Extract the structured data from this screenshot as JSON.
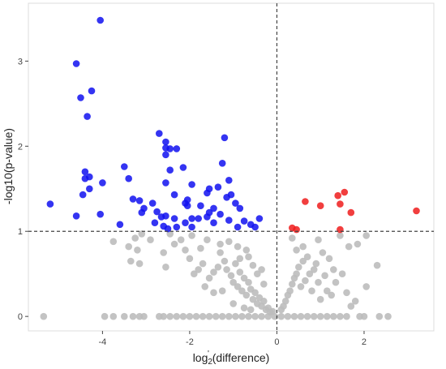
{
  "chart_data": {
    "type": "scatter",
    "title": "",
    "xlabel": "log2 (difference)",
    "xlabel_base": "log",
    "xlabel_sub": "2",
    "xlabel_sup": "'",
    "xlabel_rest": " (difference)",
    "ylabel": "-log10(p-value)",
    "xlim": [
      -5.7,
      3.6
    ],
    "ylim": [
      -0.17,
      3.68
    ],
    "xticks": [
      -4,
      -2,
      0,
      2
    ],
    "yticks": [
      0,
      1,
      2,
      3
    ],
    "xtick_labels": [
      "-4",
      "-2",
      "0",
      "2"
    ],
    "ytick_labels": [
      "0",
      "1",
      "2",
      "3"
    ],
    "grid": false,
    "reference_lines": {
      "x": 0,
      "y": 1,
      "style": "dashed"
    },
    "colors": {
      "down": "#1010f0",
      "up": "#ee1c1c",
      "ns": "#bdbdbd",
      "ref_line": "#444444",
      "frame": "#dcdcdc"
    },
    "series": [
      {
        "color_key": "down",
        "points": [
          [
            -4.05,
            3.48
          ],
          [
            -4.6,
            2.97
          ],
          [
            -4.5,
            2.57
          ],
          [
            -4.25,
            2.65
          ],
          [
            -4.35,
            2.35
          ],
          [
            -5.2,
            1.32
          ],
          [
            -4.6,
            1.18
          ],
          [
            -4.4,
            1.7
          ],
          [
            -4.3,
            1.64
          ],
          [
            -4.4,
            1.62
          ],
          [
            -4.3,
            1.5
          ],
          [
            -4.45,
            1.43
          ],
          [
            -4.0,
            1.57
          ],
          [
            -4.05,
            1.2
          ],
          [
            -3.6,
            1.08
          ],
          [
            -3.5,
            1.76
          ],
          [
            -3.4,
            1.62
          ],
          [
            -3.3,
            1.38
          ],
          [
            -3.15,
            1.36
          ],
          [
            -3.05,
            1.27
          ],
          [
            -3.1,
            1.22
          ],
          [
            -2.85,
            1.33
          ],
          [
            -2.75,
            1.23
          ],
          [
            -2.65,
            1.17
          ],
          [
            -2.55,
            1.18
          ],
          [
            -2.35,
            1.15
          ],
          [
            -2.8,
            1.1
          ],
          [
            -2.6,
            1.06
          ],
          [
            -2.5,
            1.03
          ],
          [
            -2.7,
            2.15
          ],
          [
            -2.55,
            2.05
          ],
          [
            -2.45,
            1.97
          ],
          [
            -2.55,
            1.98
          ],
          [
            -2.3,
            1.97
          ],
          [
            -2.55,
            1.9
          ],
          [
            -2.45,
            1.72
          ],
          [
            -2.55,
            1.57
          ],
          [
            -2.35,
            1.43
          ],
          [
            -2.15,
            1.75
          ],
          [
            -2.05,
            1.37
          ],
          [
            -2.1,
            1.33
          ],
          [
            -2.05,
            1.3
          ],
          [
            -1.95,
            1.55
          ],
          [
            -1.95,
            1.15
          ],
          [
            -1.75,
            1.3
          ],
          [
            -1.55,
            1.22
          ],
          [
            -1.45,
            1.1
          ],
          [
            -1.6,
            1.17
          ],
          [
            -1.8,
            1.15
          ],
          [
            -2.3,
            1.05
          ],
          [
            -2.1,
            1.1
          ],
          [
            -1.95,
            1.05
          ],
          [
            -1.6,
            1.45
          ],
          [
            -1.45,
            1.27
          ],
          [
            -1.2,
            2.1
          ],
          [
            -1.25,
            1.8
          ],
          [
            -1.1,
            1.6
          ],
          [
            -1.05,
            1.43
          ],
          [
            -1.15,
            1.4
          ],
          [
            -0.95,
            1.33
          ],
          [
            -0.85,
            1.27
          ],
          [
            -1.3,
            1.2
          ],
          [
            -1.1,
            1.13
          ],
          [
            -0.9,
            1.05
          ],
          [
            -0.75,
            1.12
          ],
          [
            -0.6,
            1.08
          ],
          [
            -0.4,
            1.15
          ],
          [
            -0.5,
            1.05
          ],
          [
            -1.35,
            1.52
          ],
          [
            -1.55,
            1.5
          ]
        ]
      },
      {
        "color_key": "up",
        "points": [
          [
            0.35,
            1.04
          ],
          [
            0.45,
            1.02
          ],
          [
            0.65,
            1.35
          ],
          [
            1.0,
            1.3
          ],
          [
            1.4,
            1.42
          ],
          [
            1.55,
            1.46
          ],
          [
            1.45,
            1.32
          ],
          [
            1.7,
            1.22
          ],
          [
            1.45,
            1.02
          ],
          [
            3.2,
            1.24
          ]
        ]
      },
      {
        "color_key": "ns",
        "points": [
          [
            -5.35,
            0
          ],
          [
            -3.95,
            0
          ],
          [
            -3.75,
            0
          ],
          [
            -3.5,
            0
          ],
          [
            -3.3,
            0
          ],
          [
            -3.15,
            0
          ],
          [
            -3.05,
            0
          ],
          [
            -2.7,
            0
          ],
          [
            -2.6,
            0
          ],
          [
            -2.45,
            0
          ],
          [
            -2.3,
            0
          ],
          [
            -2.15,
            0
          ],
          [
            -2.0,
            0
          ],
          [
            -1.85,
            0
          ],
          [
            -1.7,
            0
          ],
          [
            -1.55,
            0
          ],
          [
            -1.4,
            0
          ],
          [
            -1.25,
            0
          ],
          [
            -1.1,
            0
          ],
          [
            -0.95,
            0
          ],
          [
            -0.8,
            0
          ],
          [
            -0.65,
            0
          ],
          [
            -0.5,
            0
          ],
          [
            -0.35,
            0
          ],
          [
            -0.2,
            0
          ],
          [
            -0.05,
            0
          ],
          [
            0.1,
            0
          ],
          [
            0.25,
            0
          ],
          [
            0.4,
            0
          ],
          [
            0.55,
            0
          ],
          [
            0.7,
            0
          ],
          [
            0.85,
            0
          ],
          [
            1.0,
            0
          ],
          [
            1.15,
            0
          ],
          [
            1.3,
            0
          ],
          [
            1.45,
            0
          ],
          [
            1.6,
            0
          ],
          [
            1.9,
            0
          ],
          [
            2.0,
            0
          ],
          [
            2.35,
            0
          ],
          [
            2.55,
            0
          ],
          [
            -3.75,
            0.88
          ],
          [
            -3.4,
            0.82
          ],
          [
            -3.2,
            0.78
          ],
          [
            -3.35,
            0.65
          ],
          [
            -3.15,
            0.62
          ],
          [
            -3.25,
            0.92
          ],
          [
            -3.1,
            0.97
          ],
          [
            -2.9,
            0.9
          ],
          [
            -2.6,
            0.75
          ],
          [
            -2.55,
            0.58
          ],
          [
            -2.35,
            0.85
          ],
          [
            -2.1,
            0.78
          ],
          [
            -2.0,
            0.68
          ],
          [
            -1.9,
            0.5
          ],
          [
            -1.8,
            0.55
          ],
          [
            -1.7,
            0.62
          ],
          [
            -1.6,
            0.9
          ],
          [
            -1.55,
            0.45
          ],
          [
            -1.45,
            0.52
          ],
          [
            -1.35,
            0.58
          ],
          [
            -1.3,
            0.75
          ],
          [
            -1.2,
            0.65
          ],
          [
            -1.15,
            0.55
          ],
          [
            -1.05,
            0.48
          ],
          [
            -1.0,
            0.4
          ],
          [
            -0.95,
            0.62
          ],
          [
            -0.9,
            0.35
          ],
          [
            -0.85,
            0.52
          ],
          [
            -0.8,
            0.3
          ],
          [
            -0.75,
            0.45
          ],
          [
            -0.7,
            0.25
          ],
          [
            -0.65,
            0.4
          ],
          [
            -0.6,
            0.32
          ],
          [
            -0.55,
            0.2
          ],
          [
            -0.5,
            0.28
          ],
          [
            -0.45,
            0.15
          ],
          [
            -0.4,
            0.22
          ],
          [
            -0.35,
            0.12
          ],
          [
            -0.3,
            0.18
          ],
          [
            -0.25,
            0.08
          ],
          [
            -0.2,
            0.1
          ],
          [
            -0.15,
            0.05
          ],
          [
            -0.1,
            0.06
          ],
          [
            -1.3,
            0.85
          ],
          [
            -1.1,
            0.88
          ],
          [
            -0.9,
            0.82
          ],
          [
            -0.7,
            0.78
          ],
          [
            -0.55,
            0.6
          ],
          [
            -0.65,
            0.7
          ],
          [
            -0.85,
            0.68
          ],
          [
            -1.25,
            0.3
          ],
          [
            -1.45,
            0.28
          ],
          [
            -1.65,
            0.35
          ],
          [
            -0.75,
            0.1
          ],
          [
            -0.6,
            0.08
          ],
          [
            -1.0,
            0.15
          ],
          [
            -2.2,
            0.9
          ],
          [
            -1.95,
            0.95
          ],
          [
            -2.45,
            0.97
          ],
          [
            -1.75,
            0.8
          ],
          [
            -0.3,
            0.38
          ],
          [
            -0.45,
            0.5
          ],
          [
            -0.35,
            0.55
          ],
          [
            0.1,
            0.08
          ],
          [
            0.15,
            0.12
          ],
          [
            0.2,
            0.18
          ],
          [
            0.25,
            0.25
          ],
          [
            0.3,
            0.3
          ],
          [
            0.35,
            0.38
          ],
          [
            0.4,
            0.45
          ],
          [
            0.45,
            0.5
          ],
          [
            0.5,
            0.58
          ],
          [
            0.55,
            0.35
          ],
          [
            0.6,
            0.65
          ],
          [
            0.65,
            0.42
          ],
          [
            0.7,
            0.7
          ],
          [
            0.75,
            0.5
          ],
          [
            0.8,
            0.3
          ],
          [
            0.85,
            0.55
          ],
          [
            0.9,
            0.62
          ],
          [
            0.95,
            0.4
          ],
          [
            1.0,
            0.2
          ],
          [
            1.05,
            0.75
          ],
          [
            1.1,
            0.48
          ],
          [
            1.15,
            0.3
          ],
          [
            1.2,
            0.68
          ],
          [
            1.25,
            0.25
          ],
          [
            1.3,
            0.55
          ],
          [
            1.35,
            0.4
          ],
          [
            1.5,
            0.5
          ],
          [
            1.6,
            0.28
          ],
          [
            1.7,
            0.12
          ],
          [
            1.8,
            0.18
          ],
          [
            1.85,
            0.85
          ],
          [
            1.65,
            0.82
          ],
          [
            2.05,
            0.35
          ],
          [
            2.3,
            0.6
          ],
          [
            2.05,
            0.95
          ],
          [
            1.45,
            0.95
          ],
          [
            0.45,
            0.78
          ],
          [
            0.6,
            0.82
          ],
          [
            0.95,
            0.9
          ],
          [
            0.35,
            0.92
          ]
        ]
      }
    ]
  }
}
